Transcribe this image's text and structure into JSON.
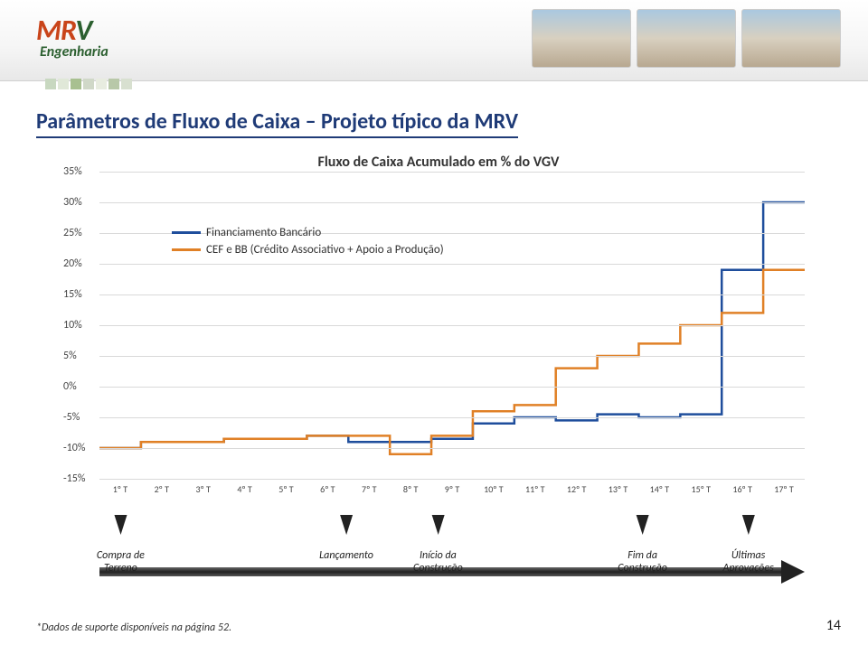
{
  "logo": {
    "main": "MRV",
    "sub": "Engenharia",
    "main_color_left": "#c9441a",
    "main_color_right": "#2b5f2f"
  },
  "title": "Parâmetros de Fluxo de Caixa – Projeto típico da MRV",
  "footnote": "*Dados de suporte disponíveis na página 52.",
  "pagenum": "14",
  "chart": {
    "title": "Fluxo de Caixa Acumulado em % do VGV",
    "type": "line-step",
    "x_labels": [
      "1º T",
      "2º T",
      "3º T",
      "4º T",
      "5º T",
      "6º T",
      "7º T",
      "8º T",
      "9º T",
      "10º T",
      "11º T",
      "12º T",
      "13º T",
      "14º T",
      "15º T",
      "16º T",
      "17º T"
    ],
    "ylim": [
      -15,
      35
    ],
    "ytick_step": 5,
    "y_labels": [
      "35%",
      "30%",
      "25%",
      "20%",
      "15%",
      "10%",
      "5%",
      "0%",
      "-5%",
      "-10%",
      "-15%"
    ],
    "grid_color": "#d9d9d9",
    "background": "#ffffff",
    "series": [
      {
        "name": "Financiamento Bancário",
        "color": "#1f4e9c",
        "values": [
          -10,
          -9,
          -9,
          -8.5,
          -8.5,
          -8,
          -9,
          -9,
          -8.5,
          -6,
          -5,
          -5.5,
          -4.5,
          -5,
          -4.5,
          19,
          30
        ]
      },
      {
        "name": "CEF e BB (Crédito Associativo + Apoio a Produção)",
        "color": "#e08026",
        "values": [
          -10,
          -9,
          -9,
          -8.5,
          -8.5,
          -8,
          -8,
          -11,
          -8,
          -4,
          -3,
          3,
          5,
          7,
          10,
          12,
          19
        ]
      }
    ]
  },
  "legend": {
    "items": [
      {
        "label": "Financiamento Bancário",
        "color": "#1f4e9c"
      },
      {
        "label": "CEF e BB (Crédito Associativo + Apoio a Produção)",
        "color": "#e08026"
      }
    ]
  },
  "timeline": {
    "events": [
      {
        "label": "Compra de\nTerreno",
        "pos_pct": 3
      },
      {
        "label": "Lançamento",
        "pos_pct": 35
      },
      {
        "label": "Início da\nConstrução",
        "pos_pct": 48
      },
      {
        "label": "Fim da\nConstrução",
        "pos_pct": 77
      },
      {
        "label": "Últimas\nAprovações",
        "pos_pct": 92
      }
    ]
  }
}
